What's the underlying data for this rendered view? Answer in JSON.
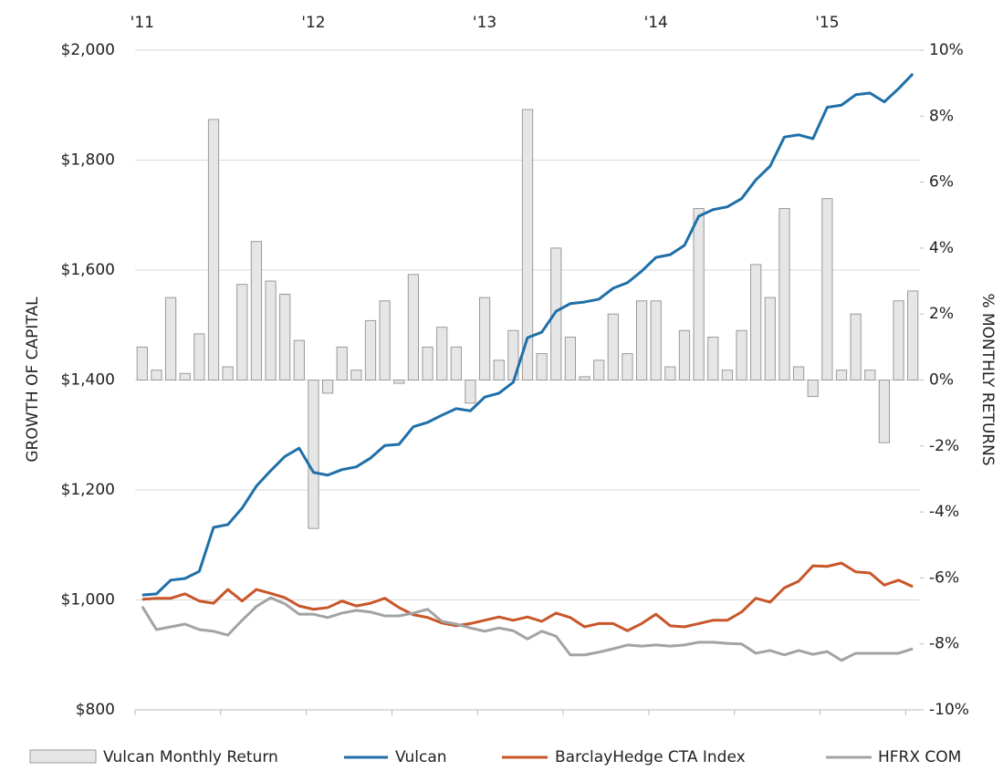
{
  "chart_data": {
    "type": "combo",
    "y_label": "GROWTH OF CAPITAL",
    "y2_label": "% MONTHLY RETURNS",
    "categories": [
      "'11",
      null,
      null,
      null,
      null,
      null,
      null,
      null,
      null,
      null,
      null,
      null,
      "'12",
      null,
      null,
      null,
      null,
      null,
      null,
      null,
      null,
      null,
      null,
      null,
      "'13",
      null,
      null,
      null,
      null,
      null,
      null,
      null,
      null,
      null,
      null,
      null,
      "'14",
      null,
      null,
      null,
      null,
      null,
      null,
      null,
      null,
      null,
      null,
      null,
      "'15",
      null,
      null,
      null,
      null,
      null,
      null
    ],
    "ylim": [
      800,
      2000
    ],
    "yticks": [
      {
        "value": 800,
        "label": "$800"
      },
      {
        "value": 1000,
        "label": "$1,000"
      },
      {
        "value": 1200,
        "label": "$1,200"
      },
      {
        "value": 1400,
        "label": "$1,400"
      },
      {
        "value": 1600,
        "label": "$1,600"
      },
      {
        "value": 1800,
        "label": "$1,800"
      },
      {
        "value": 2000,
        "label": "$2,000"
      }
    ],
    "y2lim": [
      -10,
      10
    ],
    "y2ticks": [
      {
        "value": -10,
        "label": "-10%"
      },
      {
        "value": -8,
        "label": "-8%"
      },
      {
        "value": -6,
        "label": "-6%"
      },
      {
        "value": -4,
        "label": "-4%"
      },
      {
        "value": -2,
        "label": "-2%"
      },
      {
        "value": 0,
        "label": "0%"
      },
      {
        "value": 2,
        "label": "2%"
      },
      {
        "value": 4,
        "label": "4%"
      },
      {
        "value": 6,
        "label": "6%"
      },
      {
        "value": 8,
        "label": "8%"
      },
      {
        "value": 10,
        "label": "10%"
      }
    ],
    "grid": true,
    "legend": "bottom",
    "series": [
      {
        "name": "Vulcan Monthly Return",
        "type": "bar",
        "axis": "y2",
        "color": "#e6e6e6",
        "values": [
          1.0,
          0.3,
          2.5,
          0.2,
          1.4,
          7.9,
          0.4,
          2.9,
          4.2,
          3.0,
          2.6,
          1.2,
          -4.5,
          -0.4,
          1.0,
          0.3,
          1.8,
          2.4,
          -0.1,
          3.2,
          1.0,
          1.6,
          1.0,
          -0.7,
          2.5,
          0.6,
          1.5,
          8.2,
          0.8,
          4.0,
          1.3,
          0.1,
          0.6,
          2.0,
          0.8,
          2.4,
          2.4,
          0.4,
          1.5,
          5.2,
          1.3,
          0.3,
          1.5,
          3.5,
          2.5,
          5.2,
          0.4,
          -0.5,
          5.5,
          0.3,
          2.0,
          0.3,
          -1.9,
          2.4,
          2.7
        ]
      },
      {
        "name": "Vulcan",
        "type": "line",
        "color": "#1f6fa8",
        "values": [
          1009,
          1011,
          1036,
          1039,
          1052,
          1132,
          1137,
          1167,
          1207,
          1235,
          1261,
          1276,
          1232,
          1227,
          1237,
          1242,
          1258,
          1281,
          1283,
          1315,
          1323,
          1336,
          1348,
          1344,
          1369,
          1376,
          1396,
          1477,
          1487,
          1525,
          1539,
          1542,
          1547,
          1567,
          1577,
          1598,
          1623,
          1628,
          1645,
          1698,
          1710,
          1715,
          1730,
          1764,
          1789,
          1842,
          1846,
          1839,
          1896,
          1900,
          1919,
          1922,
          1906,
          1930,
          1957
        ]
      },
      {
        "name": "BarclayHedge CTA Index",
        "type": "line",
        "color": "#c8562a",
        "values": [
          1001,
          1003,
          1003,
          1011,
          998,
          994,
          1019,
          998,
          1019,
          1012,
          1004,
          989,
          983,
          986,
          998,
          989,
          994,
          1003,
          986,
          973,
          968,
          958,
          953,
          957,
          963,
          969,
          963,
          969,
          961,
          976,
          968,
          951,
          957,
          957,
          944,
          957,
          974,
          953,
          951,
          957,
          963,
          963,
          978,
          1003,
          996,
          1022,
          1034,
          1062,
          1061,
          1067,
          1051,
          1049,
          1027,
          1036,
          1024
        ]
      },
      {
        "name": "HFRX COM",
        "type": "line",
        "color": "#a3a3a3",
        "values": [
          988,
          946,
          951,
          956,
          946,
          943,
          936,
          963,
          988,
          1004,
          993,
          974,
          974,
          968,
          976,
          981,
          978,
          971,
          971,
          976,
          983,
          961,
          956,
          949,
          943,
          949,
          944,
          929,
          943,
          934,
          900,
          900,
          905,
          911,
          918,
          916,
          918,
          916,
          918,
          923,
          923,
          921,
          920,
          903,
          908,
          900,
          908,
          901,
          906,
          890,
          903,
          903,
          903,
          903,
          911
        ]
      }
    ]
  }
}
